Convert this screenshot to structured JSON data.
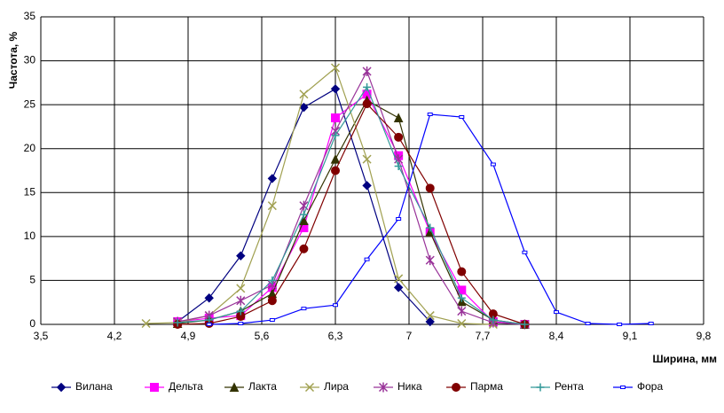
{
  "chart_data": {
    "type": "line",
    "x_label": "Ширина, мм",
    "y_label": "Частота, %",
    "x": [
      4.5,
      4.8,
      5.1,
      5.4,
      5.7,
      6.0,
      6.3,
      6.6,
      6.9,
      7.2,
      7.5,
      7.8,
      8.1,
      8.4,
      8.7,
      9.0,
      9.3
    ],
    "series": [
      {
        "name": "Вилана",
        "color": "#000080",
        "marker": "diamond",
        "values": [
          null,
          0.3,
          3,
          7.8,
          16.6,
          24.7,
          26.8,
          15.8,
          4.2,
          0.3,
          null,
          null,
          null,
          null,
          null,
          null,
          null
        ]
      },
      {
        "name": "Дельта",
        "color": "#ff00ff",
        "marker": "square",
        "values": [
          null,
          0.3,
          0.7,
          1.0,
          4.2,
          11,
          23.5,
          26.2,
          19.2,
          10.5,
          3.9,
          0.3,
          0,
          null,
          null,
          null,
          null
        ]
      },
      {
        "name": "Лакта",
        "color": "#333300",
        "marker": "triangle",
        "values": [
          null,
          0.1,
          0.5,
          1.5,
          3.5,
          11.8,
          18.8,
          25.5,
          23.5,
          10.5,
          2.6,
          0.5,
          0,
          null,
          null,
          null,
          null
        ]
      },
      {
        "name": "Лира",
        "color": "#a0a050",
        "marker": "x",
        "values": [
          0.1,
          0.2,
          1,
          4.1,
          13.5,
          26.2,
          29.2,
          18.8,
          5.2,
          1,
          0.1,
          0,
          null,
          null,
          null,
          null,
          null
        ]
      },
      {
        "name": "Ника",
        "color": "#993399",
        "marker": "star",
        "values": [
          null,
          0.3,
          1,
          2.7,
          4.5,
          13.5,
          22,
          28.8,
          18.8,
          7.3,
          1.5,
          0.2,
          0,
          null,
          null,
          null,
          null
        ]
      },
      {
        "name": "Парма",
        "color": "#800000",
        "marker": "circle",
        "values": [
          null,
          0,
          0.1,
          0.9,
          2.7,
          8.6,
          17.5,
          25.1,
          21.3,
          15.5,
          6,
          1.2,
          0,
          null,
          null,
          null,
          null
        ]
      },
      {
        "name": "Рента",
        "color": "#339999",
        "marker": "plus",
        "values": [
          null,
          0.2,
          0.5,
          1.5,
          5,
          12.5,
          21.5,
          27,
          18,
          11,
          3,
          0.5,
          0,
          null,
          null,
          null,
          null
        ]
      },
      {
        "name": "Фора",
        "color": "#0000ff",
        "marker": "rect",
        "values": [
          null,
          null,
          0,
          0.1,
          0.5,
          1.8,
          2.2,
          7.4,
          12,
          23.9,
          23.6,
          18.2,
          8.2,
          1.4,
          0.1,
          0,
          0.1
        ]
      }
    ],
    "xlim": [
      3.5,
      9.8
    ],
    "xticks": [
      {
        "value": 3.5,
        "label": "3,5"
      },
      {
        "value": 4.2,
        "label": "4,2"
      },
      {
        "value": 4.9,
        "label": "4,9"
      },
      {
        "value": 5.6,
        "label": "5,6"
      },
      {
        "value": 6.3,
        "label": "6,3"
      },
      7,
      {
        "value": 7.7,
        "label": "7,7"
      },
      {
        "value": 8.4,
        "label": "8,4"
      },
      {
        "value": 9.1,
        "label": "9,1"
      },
      {
        "value": 9.8,
        "label": "9,8"
      }
    ],
    "ylim": [
      0,
      35
    ],
    "yticks": [
      0,
      5,
      10,
      15,
      20,
      25,
      30,
      35
    ],
    "grid": true,
    "legend": "bottom"
  }
}
